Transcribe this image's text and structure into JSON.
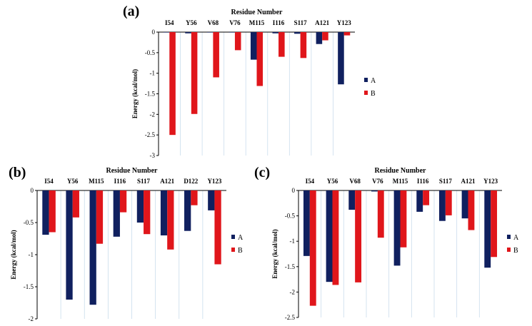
{
  "chart_data": [
    {
      "panel": "(a)",
      "type": "bar",
      "title": "Residue Number",
      "ylabel": "Energy (kcal/mol)",
      "ylim": [
        -3,
        0
      ],
      "yticks": [
        0,
        -0.5,
        -1,
        -1.5,
        -2,
        -2.5,
        -3
      ],
      "categories": [
        "I54",
        "Y56",
        "V68",
        "V76",
        "M115",
        "I116",
        "S117",
        "A121",
        "Y123"
      ],
      "series": [
        {
          "name": "A",
          "color": "#10205f",
          "values": [
            0.0,
            -0.03,
            0.0,
            0.0,
            -0.67,
            -0.03,
            -0.04,
            -0.29,
            -1.27
          ]
        },
        {
          "name": "B",
          "color": "#e0161b",
          "values": [
            -2.5,
            -1.99,
            -1.1,
            -0.44,
            -1.31,
            -0.6,
            -0.63,
            -0.2,
            -0.08
          ]
        }
      ],
      "legend": "right"
    },
    {
      "panel": "(b)",
      "type": "bar",
      "title": "Residue Number",
      "ylabel": "Energy (kcal/mol)",
      "ylim": [
        -2,
        0
      ],
      "yticks": [
        0,
        -0.5,
        -1,
        -1.5,
        -2
      ],
      "categories": [
        "I54",
        "Y56",
        "M115",
        "I116",
        "S117",
        "A121",
        "D122",
        "Y123"
      ],
      "series": [
        {
          "name": "A",
          "color": "#10205f",
          "values": [
            -0.69,
            -1.7,
            -1.78,
            -0.72,
            -0.5,
            -0.7,
            -0.63,
            -0.31
          ]
        },
        {
          "name": "B",
          "color": "#e0161b",
          "values": [
            -0.65,
            -0.42,
            -0.83,
            -0.34,
            -0.68,
            -0.92,
            -0.23,
            -1.15
          ]
        }
      ],
      "legend": "right"
    },
    {
      "panel": "(c)",
      "type": "bar",
      "title": "Residue Number",
      "ylabel": "Energy (kcal/mol)",
      "ylim": [
        -2.5,
        0
      ],
      "yticks": [
        0,
        -0.5,
        -1,
        -1.5,
        -2,
        -2.5
      ],
      "categories": [
        "I54",
        "Y56",
        "V68",
        "V76",
        "M115",
        "I116",
        "S117",
        "A121",
        "Y123"
      ],
      "series": [
        {
          "name": "A",
          "color": "#10205f",
          "values": [
            -1.29,
            -1.8,
            -0.38,
            -0.02,
            -1.48,
            -0.42,
            -0.6,
            -0.55,
            -1.52
          ]
        },
        {
          "name": "B",
          "color": "#e0161b",
          "values": [
            -2.27,
            -1.86,
            -1.81,
            -0.93,
            -1.12,
            -0.29,
            -0.49,
            -0.78,
            -1.31
          ]
        }
      ],
      "legend": "right"
    }
  ]
}
